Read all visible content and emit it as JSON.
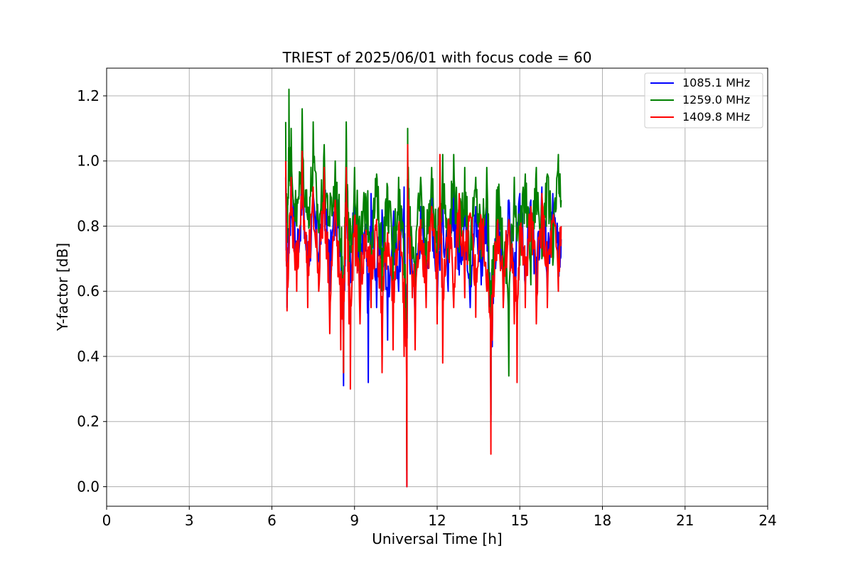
{
  "chart_data": {
    "type": "line",
    "title": "TRIEST of 2025/06/01 with focus code = 60",
    "xlabel": "Universal Time [h]",
    "ylabel": "Y-factor [dB]",
    "xlim": [
      0,
      24
    ],
    "ylim": [
      -0.06,
      1.285
    ],
    "xticks": [
      0,
      3,
      6,
      9,
      12,
      15,
      18,
      21,
      24
    ],
    "xtick_labels": [
      "0",
      "3",
      "6",
      "9",
      "12",
      "15",
      "18",
      "21",
      "24"
    ],
    "yticks": [
      0.0,
      0.2,
      0.4,
      0.6,
      0.8,
      1.0,
      1.2
    ],
    "ytick_labels": [
      "0.0",
      "0.2",
      "0.4",
      "0.6",
      "0.8",
      "1.0",
      "1.2"
    ],
    "grid": true,
    "legend_position": "top-right",
    "series": [
      {
        "name": "1085.1 MHz",
        "color": "#0000ff",
        "x": [
          6.5,
          6.55,
          6.7,
          6.9,
          7.1,
          7.3,
          7.5,
          7.7,
          7.9,
          8.1,
          8.3,
          8.5,
          8.6,
          8.7,
          8.8,
          9.0,
          9.2,
          9.4,
          9.5,
          9.6,
          9.8,
          10.0,
          10.2,
          10.4,
          10.6,
          10.8,
          10.9,
          10.93,
          11.0,
          11.2,
          11.4,
          11.6,
          11.8,
          12.0,
          12.2,
          12.4,
          12.6,
          12.8,
          13.0,
          13.2,
          13.4,
          13.6,
          13.8,
          13.95,
          14.0,
          14.2,
          14.4,
          14.6,
          14.8,
          15.0,
          15.2,
          15.4,
          15.6,
          15.8,
          16.0,
          16.2,
          16.4,
          16.5
        ],
        "y": [
          0.95,
          0.55,
          1.0,
          0.7,
          0.98,
          0.62,
          0.9,
          0.7,
          1.0,
          0.6,
          0.92,
          0.75,
          0.31,
          1.02,
          0.55,
          0.86,
          0.6,
          0.78,
          0.32,
          0.9,
          0.55,
          0.85,
          0.45,
          0.8,
          0.6,
          0.92,
          0.0,
          1.0,
          0.7,
          0.5,
          0.86,
          0.62,
          0.92,
          0.55,
          0.88,
          0.6,
          0.92,
          0.65,
          0.88,
          0.55,
          0.86,
          0.62,
          0.9,
          0.2,
          0.43,
          0.85,
          0.6,
          0.88,
          0.55,
          0.9,
          0.62,
          0.88,
          0.55,
          0.92,
          0.6,
          0.9,
          0.65,
          0.76
        ]
      },
      {
        "name": "1259.0 MHz",
        "color": "#008000",
        "x": [
          6.5,
          6.55,
          6.62,
          6.7,
          6.9,
          7.1,
          7.3,
          7.5,
          7.7,
          7.9,
          8.1,
          8.3,
          8.5,
          8.6,
          8.7,
          8.8,
          9.0,
          9.2,
          9.4,
          9.6,
          9.8,
          10.0,
          10.2,
          10.4,
          10.6,
          10.8,
          10.9,
          10.93,
          11.0,
          11.2,
          11.4,
          11.6,
          11.8,
          12.0,
          12.2,
          12.4,
          12.6,
          12.8,
          13.0,
          13.2,
          13.4,
          13.6,
          13.8,
          13.95,
          14.0,
          14.2,
          14.4,
          14.6,
          14.8,
          15.0,
          15.2,
          15.4,
          15.6,
          15.8,
          16.0,
          16.2,
          16.4,
          16.5
        ],
        "y": [
          1.12,
          0.75,
          1.22,
          1.1,
          0.8,
          1.16,
          0.82,
          1.12,
          0.78,
          1.05,
          0.8,
          1.0,
          0.72,
          0.35,
          1.12,
          0.6,
          0.98,
          0.66,
          0.9,
          0.7,
          0.96,
          0.6,
          0.92,
          0.62,
          0.95,
          0.65,
          0.05,
          1.1,
          0.75,
          0.6,
          0.95,
          0.68,
          0.98,
          0.62,
          1.02,
          0.7,
          1.02,
          0.72,
          0.98,
          0.62,
          0.95,
          0.7,
          0.98,
          0.22,
          0.5,
          0.92,
          0.65,
          0.34,
          0.95,
          0.68,
          0.96,
          0.62,
          0.98,
          0.7,
          0.96,
          0.68,
          1.02,
          0.88
        ]
      },
      {
        "name": "1409.8 MHz",
        "color": "#ff0000",
        "x": [
          6.5,
          6.55,
          6.7,
          6.9,
          7.1,
          7.3,
          7.5,
          7.7,
          7.9,
          8.1,
          8.3,
          8.5,
          8.6,
          8.7,
          8.8,
          8.85,
          9.0,
          9.2,
          9.4,
          9.6,
          9.8,
          10.0,
          10.2,
          10.4,
          10.6,
          10.8,
          10.9,
          10.93,
          11.0,
          11.2,
          11.4,
          11.6,
          11.8,
          12.0,
          12.1,
          12.2,
          12.4,
          12.6,
          12.8,
          13.0,
          13.2,
          13.4,
          13.6,
          13.8,
          13.95,
          14.0,
          14.2,
          14.4,
          14.6,
          14.8,
          14.9,
          15.0,
          15.2,
          15.4,
          15.6,
          15.8,
          16.0,
          16.2,
          16.4,
          16.5
        ],
        "y": [
          1.0,
          0.54,
          0.95,
          0.6,
          1.03,
          0.55,
          0.92,
          0.6,
          0.98,
          0.47,
          0.88,
          0.42,
          0.35,
          0.98,
          0.5,
          0.3,
          0.82,
          0.5,
          0.76,
          0.55,
          0.82,
          0.35,
          0.78,
          0.42,
          0.8,
          0.4,
          0.0,
          1.05,
          0.7,
          0.42,
          0.82,
          0.55,
          0.86,
          0.5,
          1.02,
          0.38,
          0.82,
          0.55,
          0.9,
          0.58,
          0.84,
          0.52,
          0.82,
          0.6,
          0.1,
          0.45,
          0.82,
          0.55,
          0.82,
          0.5,
          0.32,
          0.8,
          0.55,
          0.86,
          0.5,
          0.9,
          0.55,
          0.82,
          0.6,
          0.8
        ]
      }
    ]
  }
}
